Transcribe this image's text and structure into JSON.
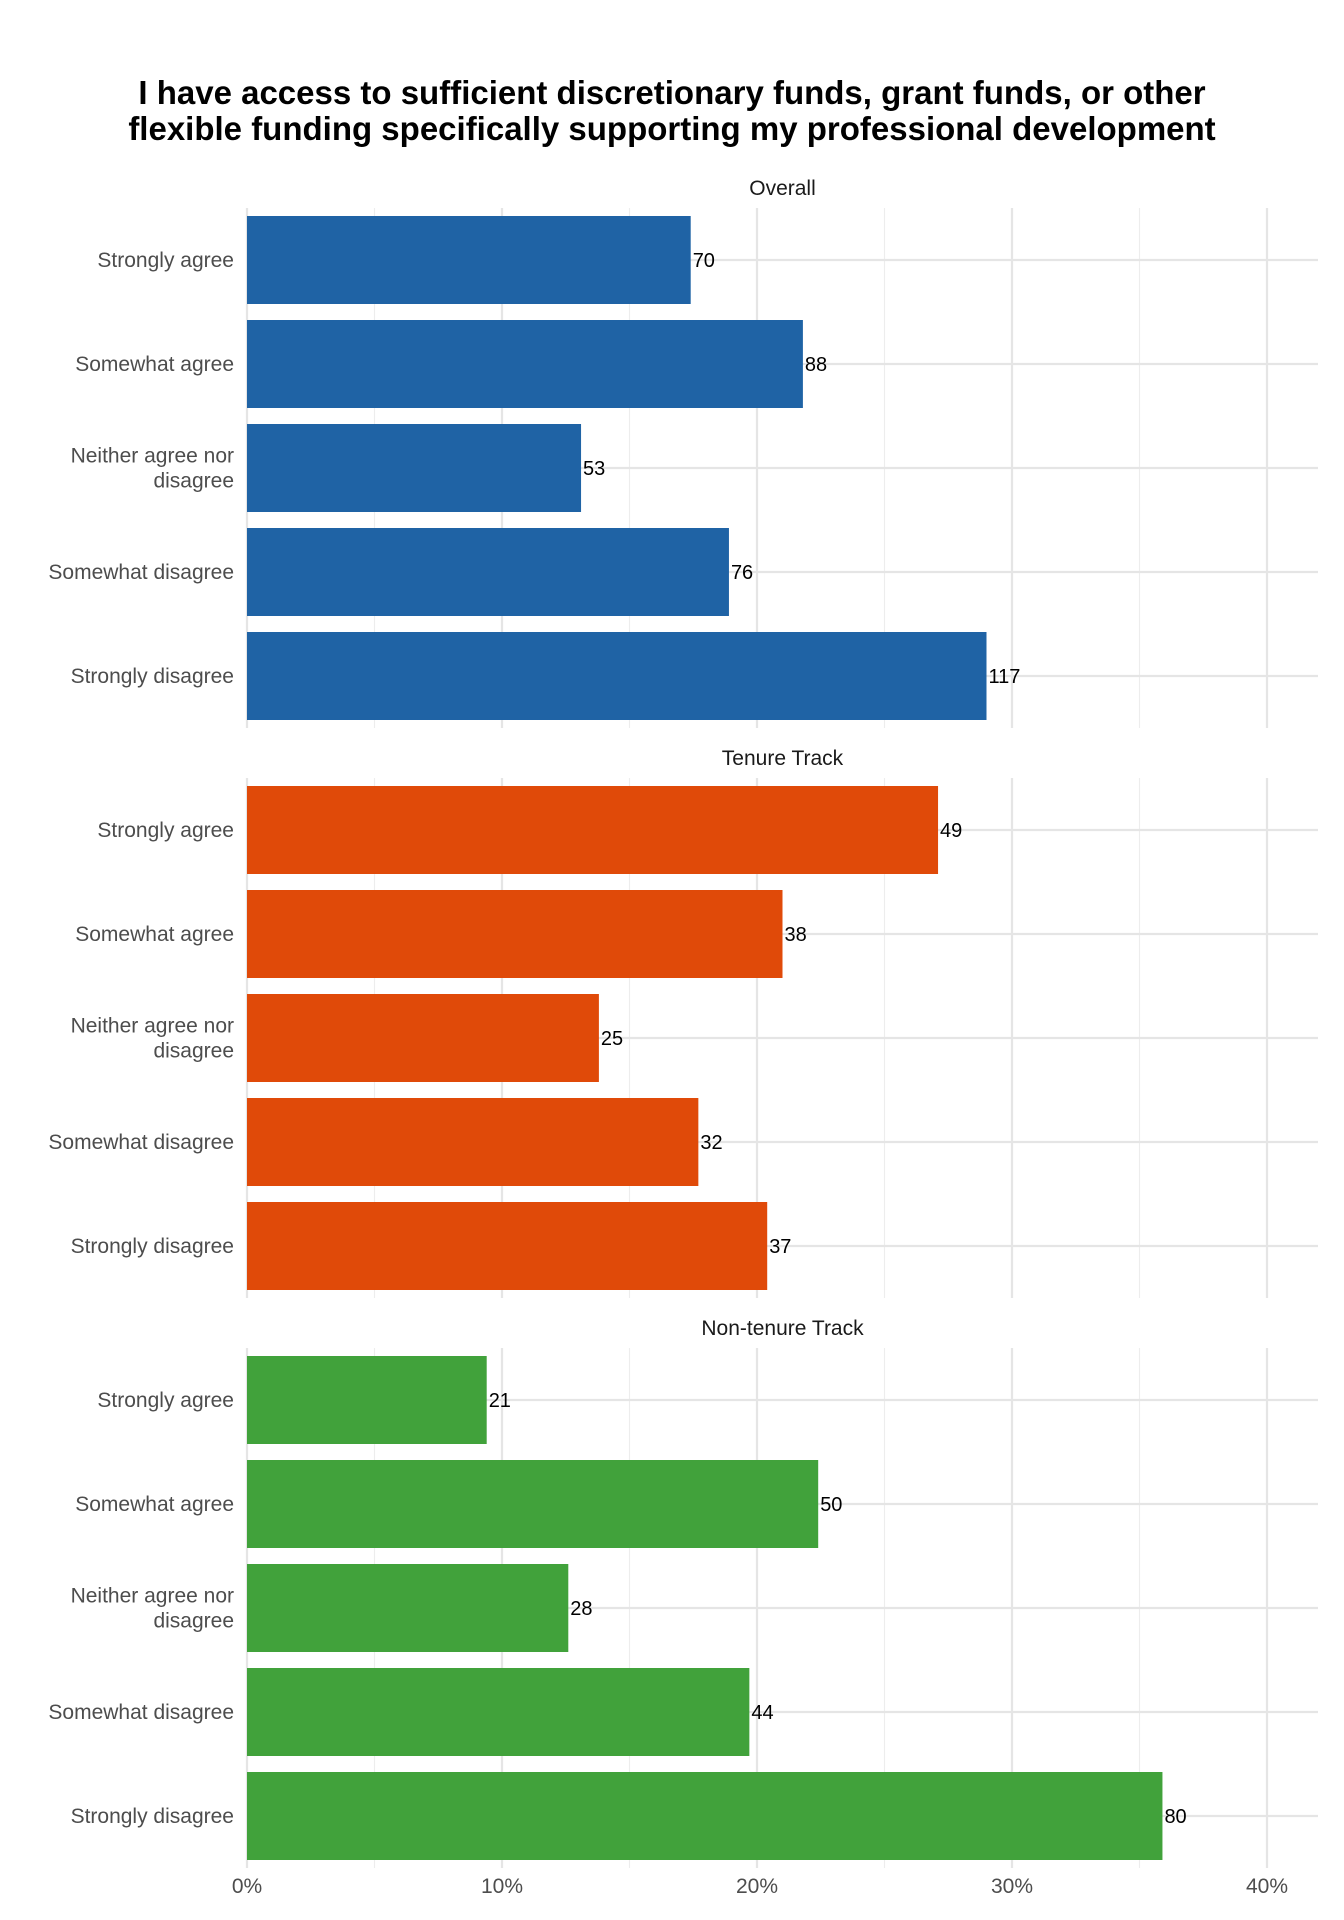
{
  "chart_data": {
    "type": "bar",
    "orientation": "horizontal",
    "title": "I have access to sufficient discretionary funds, grant funds, or other flexible funding specifically supporting my professional development",
    "title_lines": [
      "I have access to sufficient discretionary funds, grant funds, or other",
      "flexible funding specifically supporting my professional development"
    ],
    "xlabel": "",
    "ylabel": "",
    "xlim": [
      0,
      0.42
    ],
    "x_ticks": [
      0,
      0.1,
      0.2,
      0.3,
      0.4
    ],
    "x_tick_labels": [
      "0%",
      "10%",
      "20%",
      "30%",
      "40%"
    ],
    "grid": true,
    "legend": "none",
    "categories": [
      "Strongly agree",
      "Somewhat agree",
      "Neither agree nor disagree",
      "Somewhat disagree",
      "Strongly disagree"
    ],
    "category_lines": [
      [
        "Strongly agree"
      ],
      [
        "Somewhat agree"
      ],
      [
        "Neither agree nor",
        "disagree"
      ],
      [
        "Somewhat disagree"
      ],
      [
        "Strongly disagree"
      ]
    ],
    "panels": [
      {
        "name": "Overall",
        "color": "#1f63a5",
        "counts": [
          70,
          88,
          53,
          76,
          117
        ],
        "proportions": [
          0.174,
          0.218,
          0.131,
          0.189,
          0.29
        ]
      },
      {
        "name": "Tenure Track",
        "color": "#e04a09",
        "counts": [
          49,
          38,
          25,
          32,
          37
        ],
        "proportions": [
          0.271,
          0.21,
          0.138,
          0.177,
          0.204
        ]
      },
      {
        "name": "Non-tenure Track",
        "color": "#41a23b",
        "counts": [
          21,
          50,
          28,
          44,
          80
        ],
        "proportions": [
          0.094,
          0.224,
          0.126,
          0.197,
          0.359
        ]
      }
    ]
  }
}
